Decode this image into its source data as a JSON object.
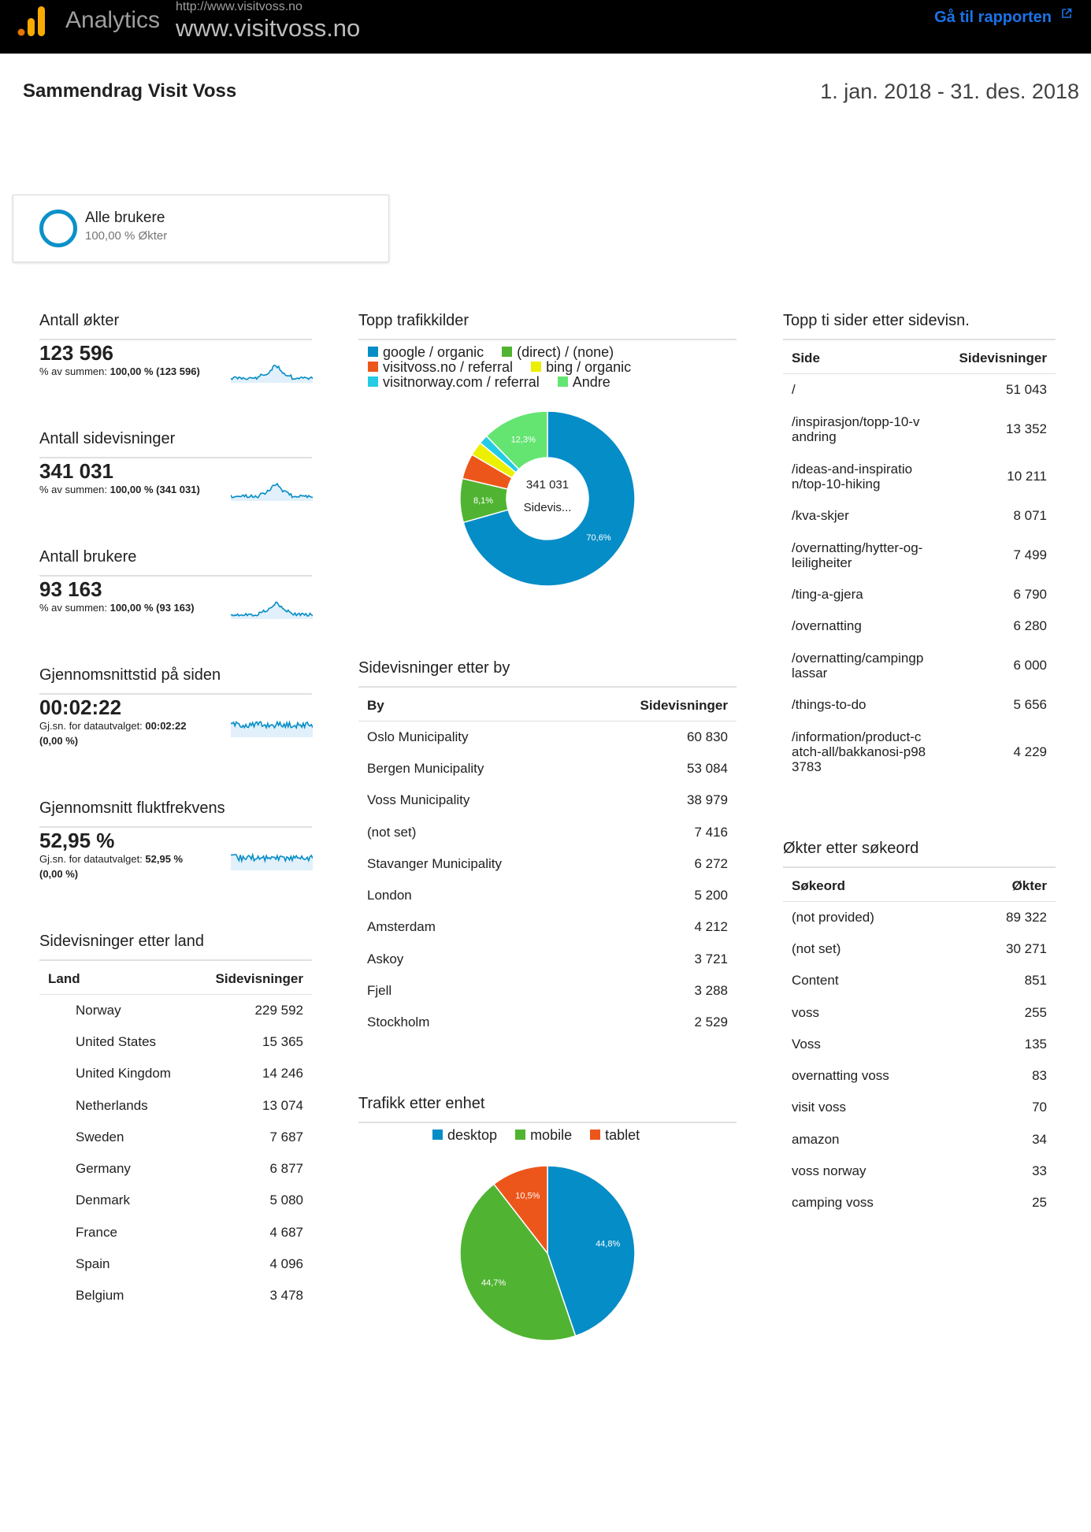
{
  "header": {
    "brand": "Analytics",
    "url_small": "http://www.visitvoss.no",
    "url_big": "www.visitvoss.no",
    "report_link": "Gå til rapporten",
    "colors": {
      "bar": "#000000",
      "link": "#1a73e8",
      "logo_orange": "#f9ab00",
      "logo_dark": "#e37400"
    }
  },
  "page": {
    "title": "Sammendrag Visit Voss",
    "date_range": "1. jan. 2018 - 31. des. 2018"
  },
  "segment": {
    "name": "Alle brukere",
    "sub": "100,00 % Økter",
    "color": "#0b91c8"
  },
  "metrics": [
    {
      "title": "Antall økter",
      "value": "123 596",
      "sub_prefix": "% av summen: ",
      "sub_bold": "100,00 % (123 596)",
      "sub_line2": ""
    },
    {
      "title": "Antall sidevisninger",
      "value": "341 031",
      "sub_prefix": "% av summen: ",
      "sub_bold": "100,00 % (341 031)",
      "sub_line2": ""
    },
    {
      "title": "Antall brukere",
      "value": "93 163",
      "sub_prefix": "% av summen: ",
      "sub_bold": "100,00 % (93 163)",
      "sub_line2": ""
    },
    {
      "title": "Gjennomsnittstid på siden",
      "value": "00:02:22",
      "sub_prefix": "Gj.sn. for datautvalget: ",
      "sub_bold": "00:02:22",
      "sub_line2": "(0,00 %)"
    },
    {
      "title": "Gjennomsnitt fluktfrekvens",
      "value": "52,95 %",
      "sub_prefix": "Gj.sn. for datautvalget: ",
      "sub_bold": "52,95 %",
      "sub_line2": "(0,00 %)"
    }
  ],
  "country": {
    "title": "Sidevisninger etter land",
    "col1": "Land",
    "col2": "Sidevisninger",
    "rows": [
      [
        "Norway",
        "229 592"
      ],
      [
        "United States",
        "15 365"
      ],
      [
        "United Kingdom",
        "14 246"
      ],
      [
        "Netherlands",
        "13 074"
      ],
      [
        "Sweden",
        "7 687"
      ],
      [
        "Germany",
        "6 877"
      ],
      [
        "Denmark",
        "5 080"
      ],
      [
        "France",
        "4 687"
      ],
      [
        "Spain",
        "4 096"
      ],
      [
        "Belgium",
        "3 478"
      ]
    ]
  },
  "traffic": {
    "title": "Topp trafikkilder",
    "center_value": "341 031",
    "center_label": "Sidevis...",
    "legend": [
      {
        "label": "google / organic",
        "color": "#058dc7"
      },
      {
        "label": "(direct) / (none)",
        "color": "#50b432"
      },
      {
        "label": "visitvoss.no / referral",
        "color": "#ed561b"
      },
      {
        "label": "bing / organic",
        "color": "#edef00"
      },
      {
        "label": "visitnorway.com / referral",
        "color": "#24cbe5"
      },
      {
        "label": "Andre",
        "color": "#64e572"
      }
    ]
  },
  "city": {
    "title": "Sidevisninger etter by",
    "col1": "By",
    "col2": "Sidevisninger",
    "rows": [
      [
        "Oslo Municipality",
        "60 830"
      ],
      [
        "Bergen Municipality",
        "53 084"
      ],
      [
        "Voss Municipality",
        "38 979"
      ],
      [
        "(not set)",
        "7 416"
      ],
      [
        "Stavanger Municipality",
        "6 272"
      ],
      [
        "London",
        "5 200"
      ],
      [
        "Amsterdam",
        "4 212"
      ],
      [
        "Askoy",
        "3 721"
      ],
      [
        "Fjell",
        "3 288"
      ],
      [
        "Stockholm",
        "2 529"
      ]
    ]
  },
  "device": {
    "title": "Trafikk etter enhet",
    "legend": [
      {
        "label": "desktop",
        "color": "#058dc7"
      },
      {
        "label": "mobile",
        "color": "#50b432"
      },
      {
        "label": "tablet",
        "color": "#ed561b"
      }
    ]
  },
  "pages": {
    "title": "Topp ti sider etter sidevisn.",
    "col1": "Side",
    "col2": "Sidevisninger",
    "rows": [
      {
        "l1": "/",
        "l2": "",
        "l3": "",
        "v": "51 043"
      },
      {
        "l1": "/inspirasjon/topp-10-v",
        "l2": "andring",
        "l3": "",
        "v": "13 352"
      },
      {
        "l1": "/ideas-and-inspiratio",
        "l2": "n/top-10-hiking",
        "l3": "",
        "v": "10 211"
      },
      {
        "l1": "/kva-skjer",
        "l2": "",
        "l3": "",
        "v": "8 071"
      },
      {
        "l1": "/overnatting/hytter-og-",
        "l2": "leiligheiter",
        "l3": "",
        "v": "7 499"
      },
      {
        "l1": "/ting-a-gjera",
        "l2": "",
        "l3": "",
        "v": "6 790"
      },
      {
        "l1": "/overnatting",
        "l2": "",
        "l3": "",
        "v": "6 280"
      },
      {
        "l1": "/overnatting/campingp",
        "l2": "lassar",
        "l3": "",
        "v": "6 000"
      },
      {
        "l1": "/things-to-do",
        "l2": "",
        "l3": "",
        "v": "5 656"
      },
      {
        "l1": "/information/product-c",
        "l2": "atch-all/bakkanosi-p98",
        "l3": "3783",
        "v": "4 229"
      }
    ]
  },
  "keywords": {
    "title": "Økter etter søkeord",
    "col1": "Søkeord",
    "col2": "Økter",
    "rows": [
      [
        "(not provided)",
        "89 322"
      ],
      [
        "(not set)",
        "30 271"
      ],
      [
        "Content",
        "851"
      ],
      [
        "voss",
        "255"
      ],
      [
        "Voss",
        "135"
      ],
      [
        "overnatting voss",
        "83"
      ],
      [
        "visit voss",
        "70"
      ],
      [
        "amazon",
        "34"
      ],
      [
        "voss norway",
        "33"
      ],
      [
        "camping voss",
        "25"
      ]
    ]
  },
  "chart_data": [
    {
      "type": "pie",
      "subtype": "donut",
      "title": "Topp trafikkilder",
      "categories": [
        "google / organic",
        "(direct) / (none)",
        "visitvoss.no / referral",
        "bing / organic",
        "visitnorway.com / referral",
        "Andre"
      ],
      "values": [
        70.6,
        8.1,
        4.7,
        2.6,
        1.7,
        12.3
      ],
      "labels": [
        "70,6%",
        "8,1%",
        "",
        "",
        "",
        "12,3%"
      ],
      "colors": [
        "#058dc7",
        "#50b432",
        "#ed561b",
        "#edef00",
        "#24cbe5",
        "#64e572"
      ]
    },
    {
      "type": "pie",
      "title": "Trafikk etter enhet",
      "categories": [
        "desktop",
        "mobile",
        "tablet"
      ],
      "values": [
        44.8,
        44.7,
        10.5
      ],
      "labels": [
        "44,8%",
        "44,7%",
        "10,5%"
      ],
      "colors": [
        "#058dc7",
        "#50b432",
        "#ed561b"
      ]
    }
  ]
}
